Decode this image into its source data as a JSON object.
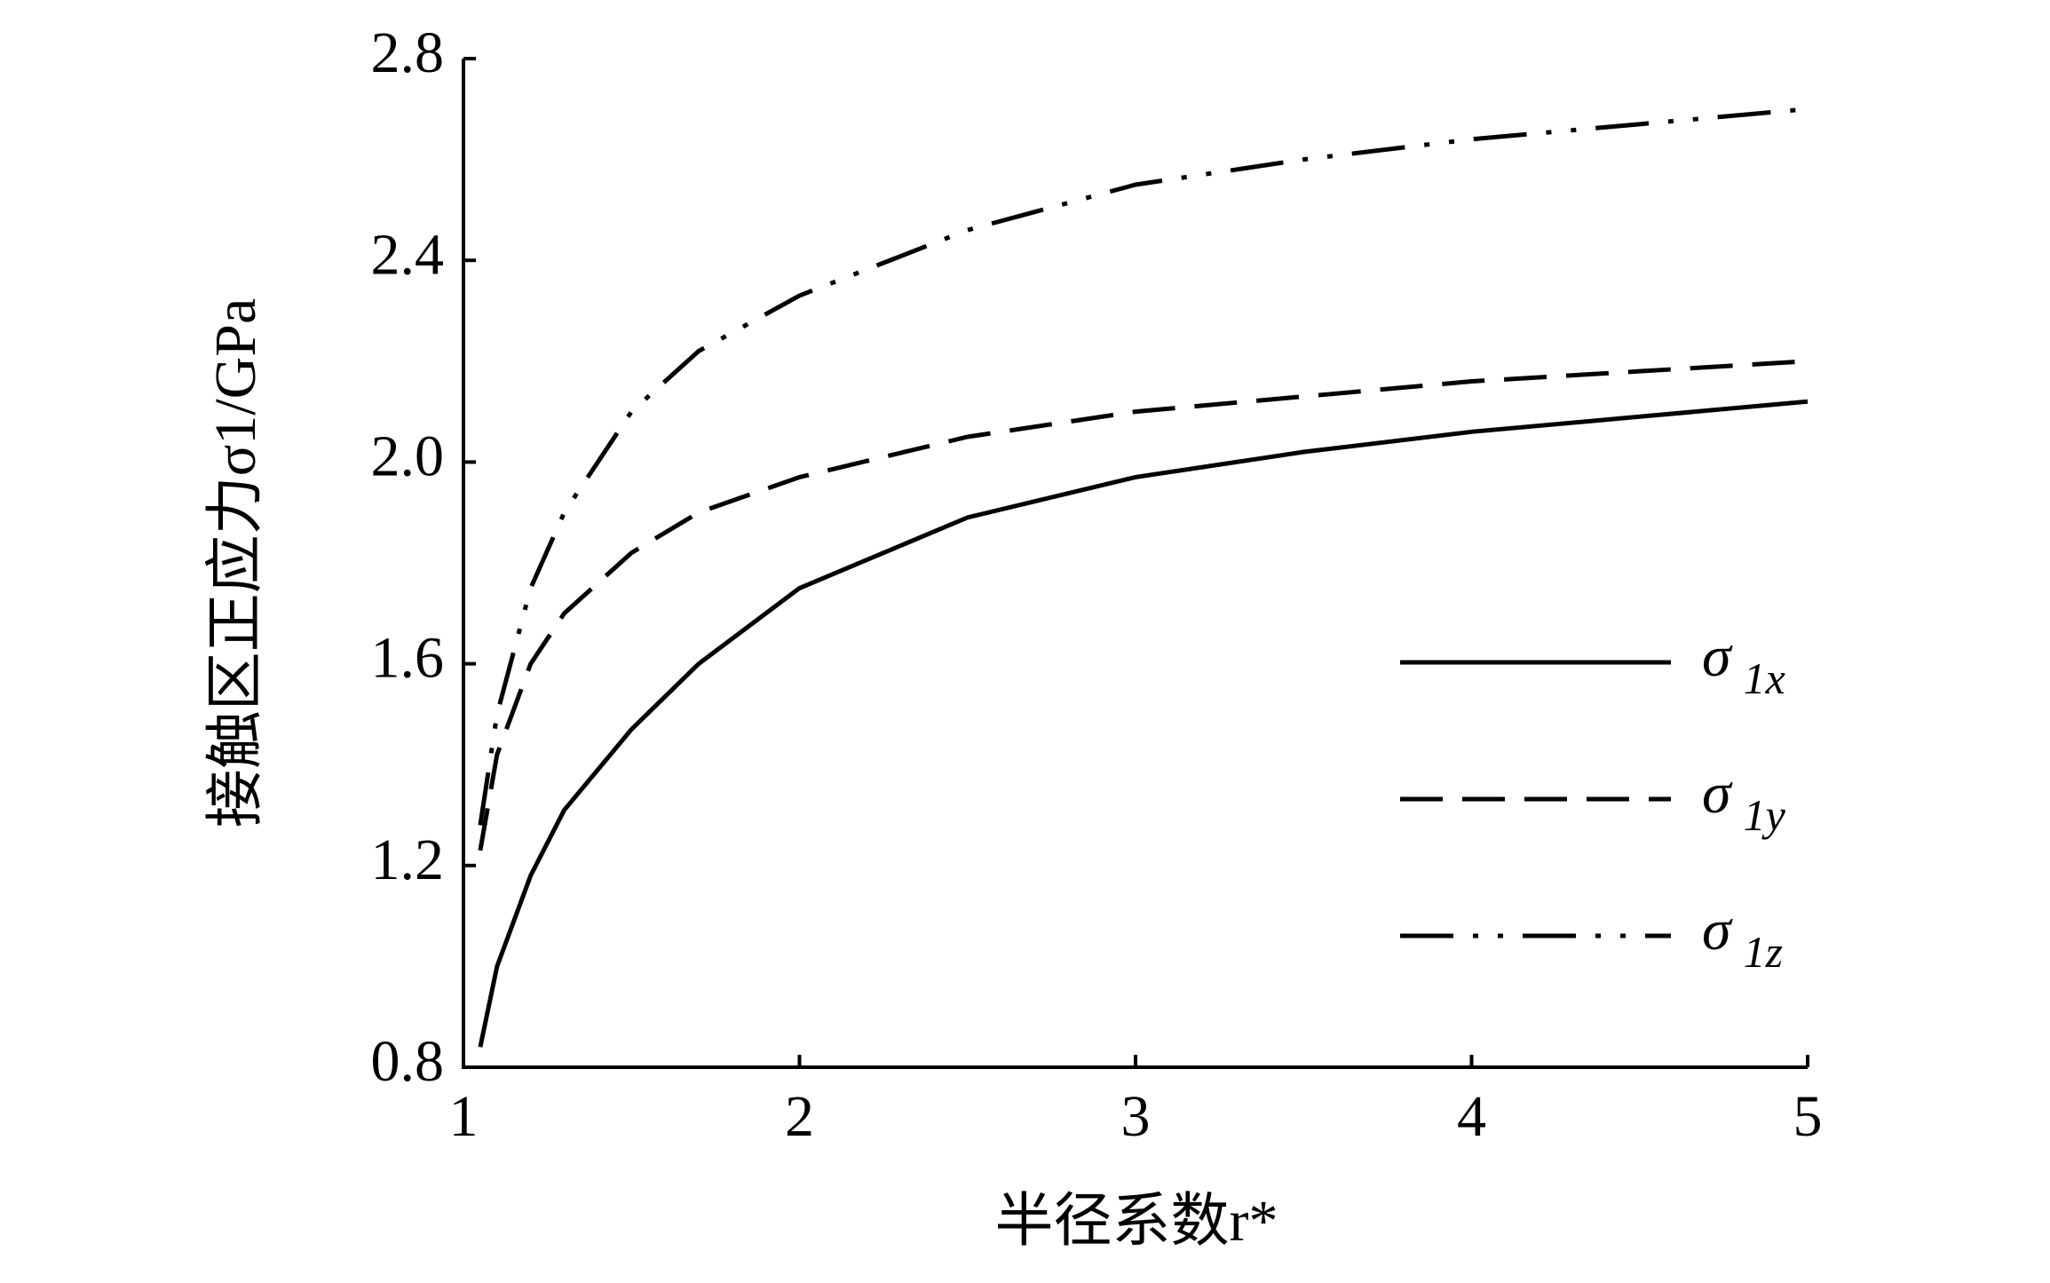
{
  "chart_data": {
    "type": "line",
    "xlabel": "半径系数r*",
    "ylabel": "接触区正应力σ1/GPa",
    "x": [
      1.05,
      1.1,
      1.2,
      1.3,
      1.5,
      1.7,
      2,
      2.5,
      3,
      3.5,
      4,
      4.5,
      5
    ],
    "series": [
      {
        "name": "σ1x",
        "color": "#000000",
        "dash": "solid",
        "values": [
          0.84,
          1.0,
          1.18,
          1.31,
          1.47,
          1.6,
          1.75,
          1.89,
          1.97,
          2.02,
          2.06,
          2.09,
          2.12
        ]
      },
      {
        "name": "σ1y",
        "color": "#000000",
        "dash": "dashed",
        "values": [
          1.23,
          1.42,
          1.6,
          1.7,
          1.82,
          1.9,
          1.97,
          2.05,
          2.1,
          2.13,
          2.16,
          2.18,
          2.2
        ]
      },
      {
        "name": "σ1z",
        "color": "#000000",
        "dash": "dash-dot-dot",
        "values": [
          1.28,
          1.5,
          1.75,
          1.9,
          2.1,
          2.22,
          2.33,
          2.46,
          2.55,
          2.6,
          2.64,
          2.67,
          2.7
        ]
      }
    ],
    "xlim": [
      1,
      5
    ],
    "xticks": [
      1,
      2,
      3,
      4,
      5
    ],
    "ylim": [
      0.8,
      2.8
    ],
    "yticks": [
      {
        "value": 0.8,
        "label": "0.8"
      },
      {
        "value": 1.2,
        "label": "1.2"
      },
      {
        "value": 1.6,
        "label": "1.6"
      },
      {
        "value": 2.0,
        "label": "2.0"
      },
      {
        "value": 2.4,
        "label": "2.4"
      },
      {
        "value": 2.8,
        "label": "2.8"
      }
    ],
    "grid": false,
    "legend": "right"
  }
}
